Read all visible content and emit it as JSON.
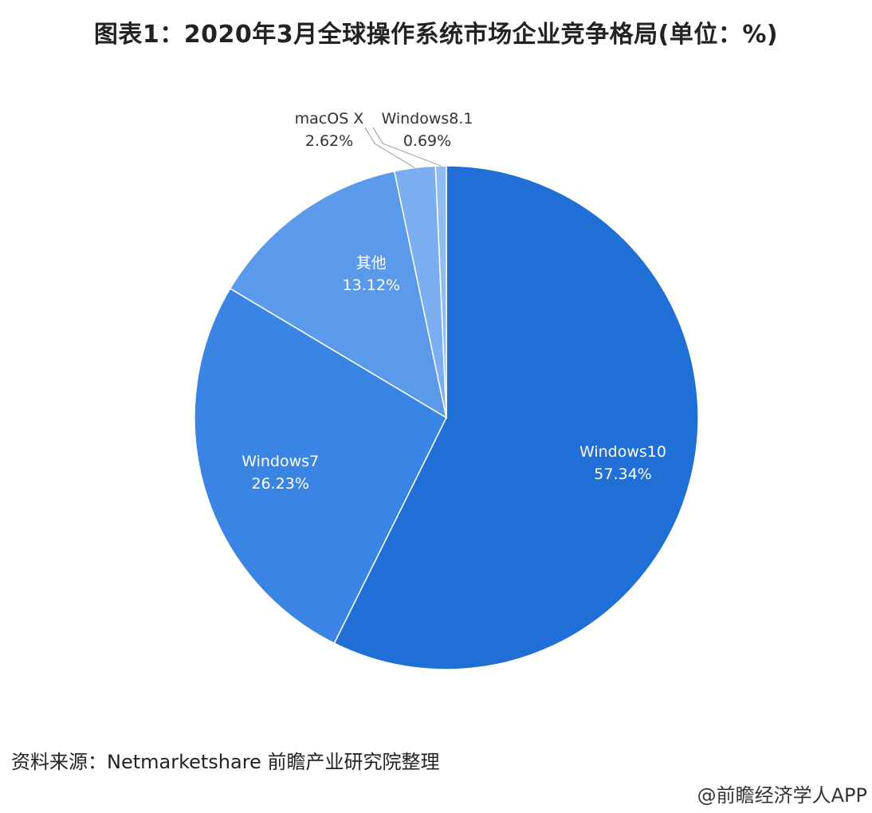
{
  "title": "图表1：2020年3月全球操作系统市场企业竞争格局(单位：%)",
  "chart_data": {
    "type": "pie",
    "start_angle_deg": 0,
    "direction": "clockwise",
    "slices": [
      {
        "name": "Windows10",
        "value": 57.34,
        "label": "57.34%",
        "color": "#1f6fd6"
      },
      {
        "name": "Windows7",
        "value": 26.23,
        "label": "26.23%",
        "color": "#3a85e3"
      },
      {
        "name": "其他",
        "value": 13.12,
        "label": "13.12%",
        "color": "#5b99eb"
      },
      {
        "name": "macOS X",
        "value": 2.62,
        "label": "2.62%",
        "color": "#7aaef0"
      },
      {
        "name": "Windows8.1",
        "value": 0.69,
        "label": "0.69%",
        "color": "#8fbcf3"
      }
    ]
  },
  "footer": {
    "source": "资料来源：Netmarketshare 前瞻产业研究院整理",
    "credit": "@前瞻经济学人APP"
  }
}
